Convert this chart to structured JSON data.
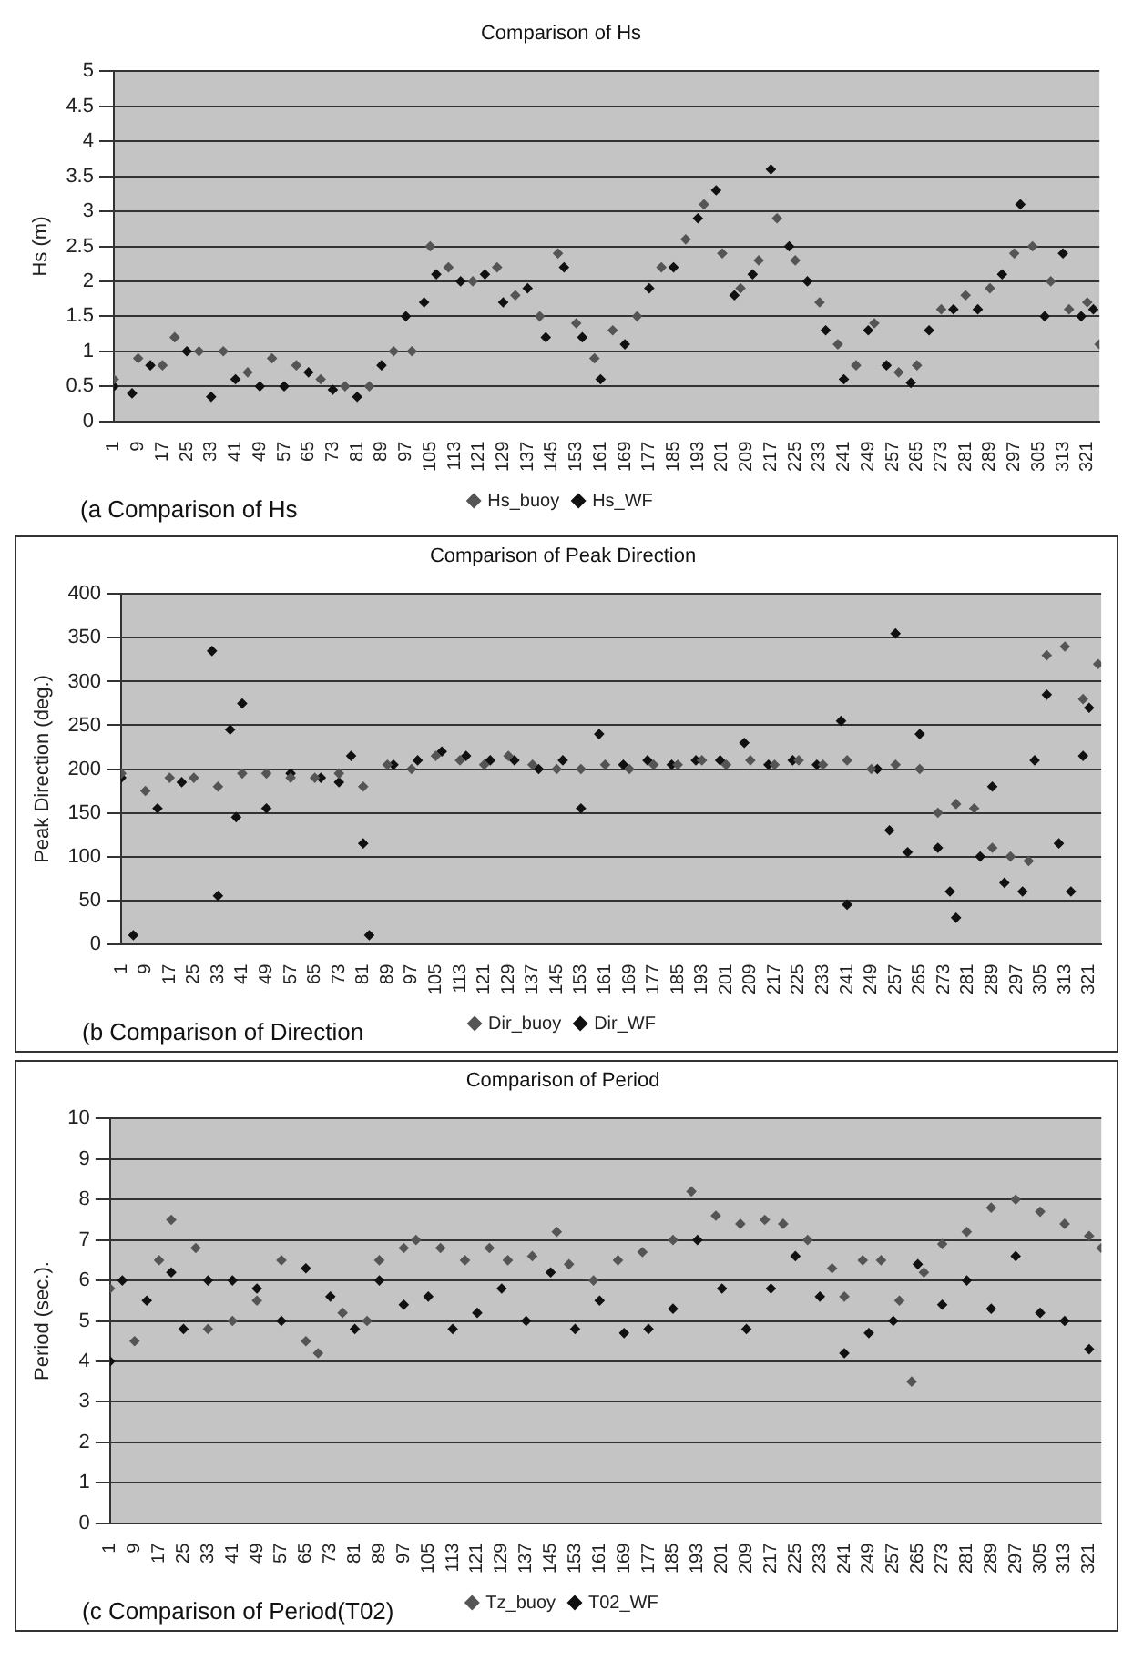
{
  "chart_data": [
    {
      "type": "scatter",
      "title": "Comparison of Hs",
      "ylabel": "Hs (m)",
      "annotations": [
        "(a Comparison of Hs"
      ],
      "xlim": [
        1,
        325
      ],
      "xticks": [
        1,
        9,
        17,
        25,
        33,
        41,
        49,
        57,
        65,
        73,
        81,
        89,
        97,
        105,
        113,
        121,
        129,
        137,
        145,
        153,
        161,
        169,
        177,
        185,
        193,
        201,
        209,
        217,
        225,
        233,
        241,
        249,
        257,
        265,
        273,
        281,
        289,
        297,
        305,
        313,
        321
      ],
      "ylim": [
        0,
        5
      ],
      "yticks": [
        0,
        0.5,
        1,
        1.5,
        2,
        2.5,
        3,
        3.5,
        4,
        4.5,
        5
      ],
      "grid": "y",
      "legend": "bottom",
      "marker": "diamond",
      "series": [
        {
          "name": "Hs_buoy",
          "color": "#555555",
          "x": [
            1,
            9,
            17,
            21,
            29,
            37,
            45,
            53,
            61,
            69,
            77,
            85,
            93,
            99,
            105,
            111,
            119,
            127,
            133,
            141,
            147,
            153,
            159,
            165,
            173,
            181,
            189,
            195,
            201,
            207,
            213,
            219,
            225,
            233,
            239,
            245,
            251,
            259,
            265,
            273,
            281,
            289,
            297,
            303,
            309,
            315,
            321,
            325
          ],
          "values": [
            0.6,
            0.9,
            0.8,
            1.2,
            1.0,
            1.0,
            0.7,
            0.9,
            0.8,
            0.6,
            0.5,
            0.5,
            1.0,
            1.0,
            2.5,
            2.2,
            2.0,
            2.2,
            1.8,
            1.5,
            2.4,
            1.4,
            0.9,
            1.3,
            1.5,
            2.2,
            2.6,
            3.1,
            2.4,
            1.9,
            2.3,
            2.9,
            2.3,
            1.7,
            1.1,
            0.8,
            1.4,
            0.7,
            0.8,
            1.6,
            1.8,
            1.9,
            2.4,
            2.5,
            2.0,
            1.6,
            1.7,
            1.1
          ]
        },
        {
          "name": "Hs_WF",
          "color": "#111111",
          "x": [
            1,
            7,
            13,
            25,
            33,
            41,
            49,
            57,
            65,
            73,
            81,
            89,
            97,
            103,
            107,
            115,
            123,
            129,
            137,
            143,
            149,
            155,
            161,
            169,
            177,
            185,
            193,
            199,
            205,
            211,
            217,
            223,
            229,
            235,
            241,
            249,
            255,
            263,
            269,
            277,
            285,
            293,
            299,
            307,
            313,
            319,
            323
          ],
          "values": [
            0.5,
            0.4,
            0.8,
            1.0,
            0.35,
            0.6,
            0.5,
            0.5,
            0.7,
            0.45,
            0.35,
            0.8,
            1.5,
            1.7,
            2.1,
            2.0,
            2.1,
            1.7,
            1.9,
            1.2,
            2.2,
            1.2,
            0.6,
            1.1,
            1.9,
            2.2,
            2.9,
            3.3,
            1.8,
            2.1,
            3.6,
            2.5,
            2.0,
            1.3,
            0.6,
            1.3,
            0.8,
            0.55,
            1.3,
            1.6,
            1.6,
            2.1,
            3.1,
            1.5,
            2.4,
            1.5,
            1.6
          ]
        }
      ]
    },
    {
      "type": "scatter",
      "title": "Comparison of Peak Direction",
      "ylabel": "Peak Direction (deg.)",
      "annotations": [
        "(b Comparison of Direction"
      ],
      "xlim": [
        1,
        325
      ],
      "xticks": [
        1,
        9,
        17,
        25,
        33,
        41,
        49,
        57,
        65,
        73,
        81,
        89,
        97,
        105,
        113,
        121,
        129,
        137,
        145,
        153,
        161,
        169,
        177,
        185,
        193,
        201,
        209,
        217,
        225,
        233,
        241,
        249,
        257,
        265,
        273,
        281,
        289,
        297,
        305,
        313,
        321
      ],
      "ylim": [
        0,
        400
      ],
      "yticks": [
        0,
        50,
        100,
        150,
        200,
        250,
        300,
        350,
        400
      ],
      "grid": "y",
      "legend": "bottom",
      "marker": "diamond",
      "series": [
        {
          "name": "Dir_buoy",
          "color": "#555555",
          "x": [
            1,
            9,
            17,
            25,
            33,
            41,
            49,
            57,
            65,
            73,
            81,
            89,
            97,
            105,
            113,
            121,
            129,
            137,
            145,
            153,
            161,
            169,
            177,
            185,
            193,
            201,
            209,
            217,
            225,
            233,
            241,
            249,
            257,
            265,
            271,
            277,
            283,
            289,
            295,
            301,
            307,
            313,
            319,
            324
          ],
          "values": [
            195,
            175,
            190,
            190,
            180,
            195,
            195,
            190,
            190,
            195,
            180,
            205,
            200,
            215,
            210,
            205,
            215,
            205,
            200,
            200,
            205,
            200,
            205,
            205,
            210,
            205,
            210,
            205,
            210,
            205,
            210,
            200,
            205,
            200,
            150,
            160,
            155,
            110,
            100,
            95,
            330,
            340,
            280,
            320
          ]
        },
        {
          "name": "Dir_WF",
          "color": "#111111",
          "x": [
            1,
            5,
            13,
            21,
            31,
            33,
            37,
            39,
            41,
            49,
            57,
            67,
            73,
            77,
            81,
            83,
            91,
            99,
            107,
            115,
            123,
            131,
            139,
            147,
            153,
            159,
            167,
            175,
            183,
            191,
            199,
            207,
            215,
            223,
            231,
            239,
            241,
            251,
            255,
            257,
            261,
            265,
            271,
            275,
            277,
            285,
            289,
            293,
            299,
            303,
            307,
            311,
            315,
            319,
            321
          ],
          "values": [
            190,
            10,
            155,
            185,
            335,
            55,
            245,
            145,
            275,
            155,
            195,
            190,
            185,
            215,
            115,
            10,
            205,
            210,
            220,
            215,
            210,
            210,
            200,
            210,
            155,
            240,
            205,
            210,
            205,
            210,
            210,
            230,
            205,
            210,
            205,
            255,
            45,
            200,
            130,
            355,
            105,
            240,
            110,
            60,
            30,
            100,
            180,
            70,
            60,
            210,
            285,
            115,
            60,
            215,
            270
          ]
        }
      ]
    },
    {
      "type": "scatter",
      "title": "Comparison of Period",
      "ylabel": "Period (sec.).",
      "annotations": [
        "(c Comparison of Period(T02)"
      ],
      "xlim": [
        1,
        325
      ],
      "xticks": [
        1,
        9,
        17,
        25,
        33,
        41,
        49,
        57,
        65,
        73,
        81,
        89,
        97,
        105,
        113,
        121,
        129,
        137,
        145,
        153,
        161,
        169,
        177,
        185,
        193,
        201,
        209,
        217,
        225,
        233,
        241,
        249,
        257,
        265,
        273,
        281,
        289,
        297,
        305,
        313,
        321
      ],
      "ylim": [
        0,
        10
      ],
      "yticks": [
        0,
        1,
        2,
        3,
        4,
        5,
        6,
        7,
        8,
        9,
        10
      ],
      "grid": "y",
      "legend": "bottom",
      "marker": "diamond",
      "series": [
        {
          "name": "Tz_buoy",
          "color": "#555555",
          "x": [
            1,
            9,
            17,
            21,
            29,
            33,
            41,
            49,
            57,
            65,
            69,
            77,
            85,
            89,
            97,
            101,
            109,
            117,
            125,
            131,
            139,
            147,
            151,
            159,
            167,
            175,
            185,
            191,
            199,
            207,
            215,
            221,
            229,
            237,
            241,
            247,
            253,
            259,
            263,
            267,
            273,
            281,
            289,
            297,
            305,
            313,
            321,
            325
          ],
          "values": [
            5.8,
            4.5,
            6.5,
            7.5,
            6.8,
            4.8,
            5.0,
            5.5,
            6.5,
            4.5,
            4.2,
            5.2,
            5.0,
            6.5,
            6.8,
            7.0,
            6.8,
            6.5,
            6.8,
            6.5,
            6.6,
            7.2,
            6.4,
            6.0,
            6.5,
            6.7,
            7.0,
            8.2,
            7.6,
            7.4,
            7.5,
            7.4,
            7.0,
            6.3,
            5.6,
            6.5,
            6.5,
            5.5,
            3.5,
            6.2,
            6.9,
            7.2,
            7.8,
            8.0,
            7.7,
            7.4,
            7.1,
            6.8
          ]
        },
        {
          "name": "T02_WF",
          "color": "#111111",
          "x": [
            1,
            5,
            13,
            21,
            25,
            33,
            41,
            49,
            57,
            65,
            73,
            81,
            89,
            97,
            105,
            113,
            121,
            129,
            137,
            145,
            153,
            161,
            169,
            177,
            185,
            193,
            201,
            209,
            217,
            225,
            233,
            241,
            249,
            257,
            265,
            273,
            281,
            289,
            297,
            305,
            313,
            321
          ],
          "values": [
            4.0,
            6.0,
            5.5,
            6.2,
            4.8,
            6.0,
            6.0,
            5.8,
            5.0,
            6.3,
            5.6,
            4.8,
            6.0,
            5.4,
            5.6,
            4.8,
            5.2,
            5.8,
            5.0,
            6.2,
            4.8,
            5.5,
            4.7,
            4.8,
            5.3,
            7.0,
            5.8,
            4.8,
            5.8,
            6.6,
            5.6,
            4.2,
            4.7,
            5.0,
            6.4,
            5.4,
            6.0,
            5.3,
            6.6,
            5.2,
            5.0,
            4.3
          ]
        }
      ]
    }
  ]
}
